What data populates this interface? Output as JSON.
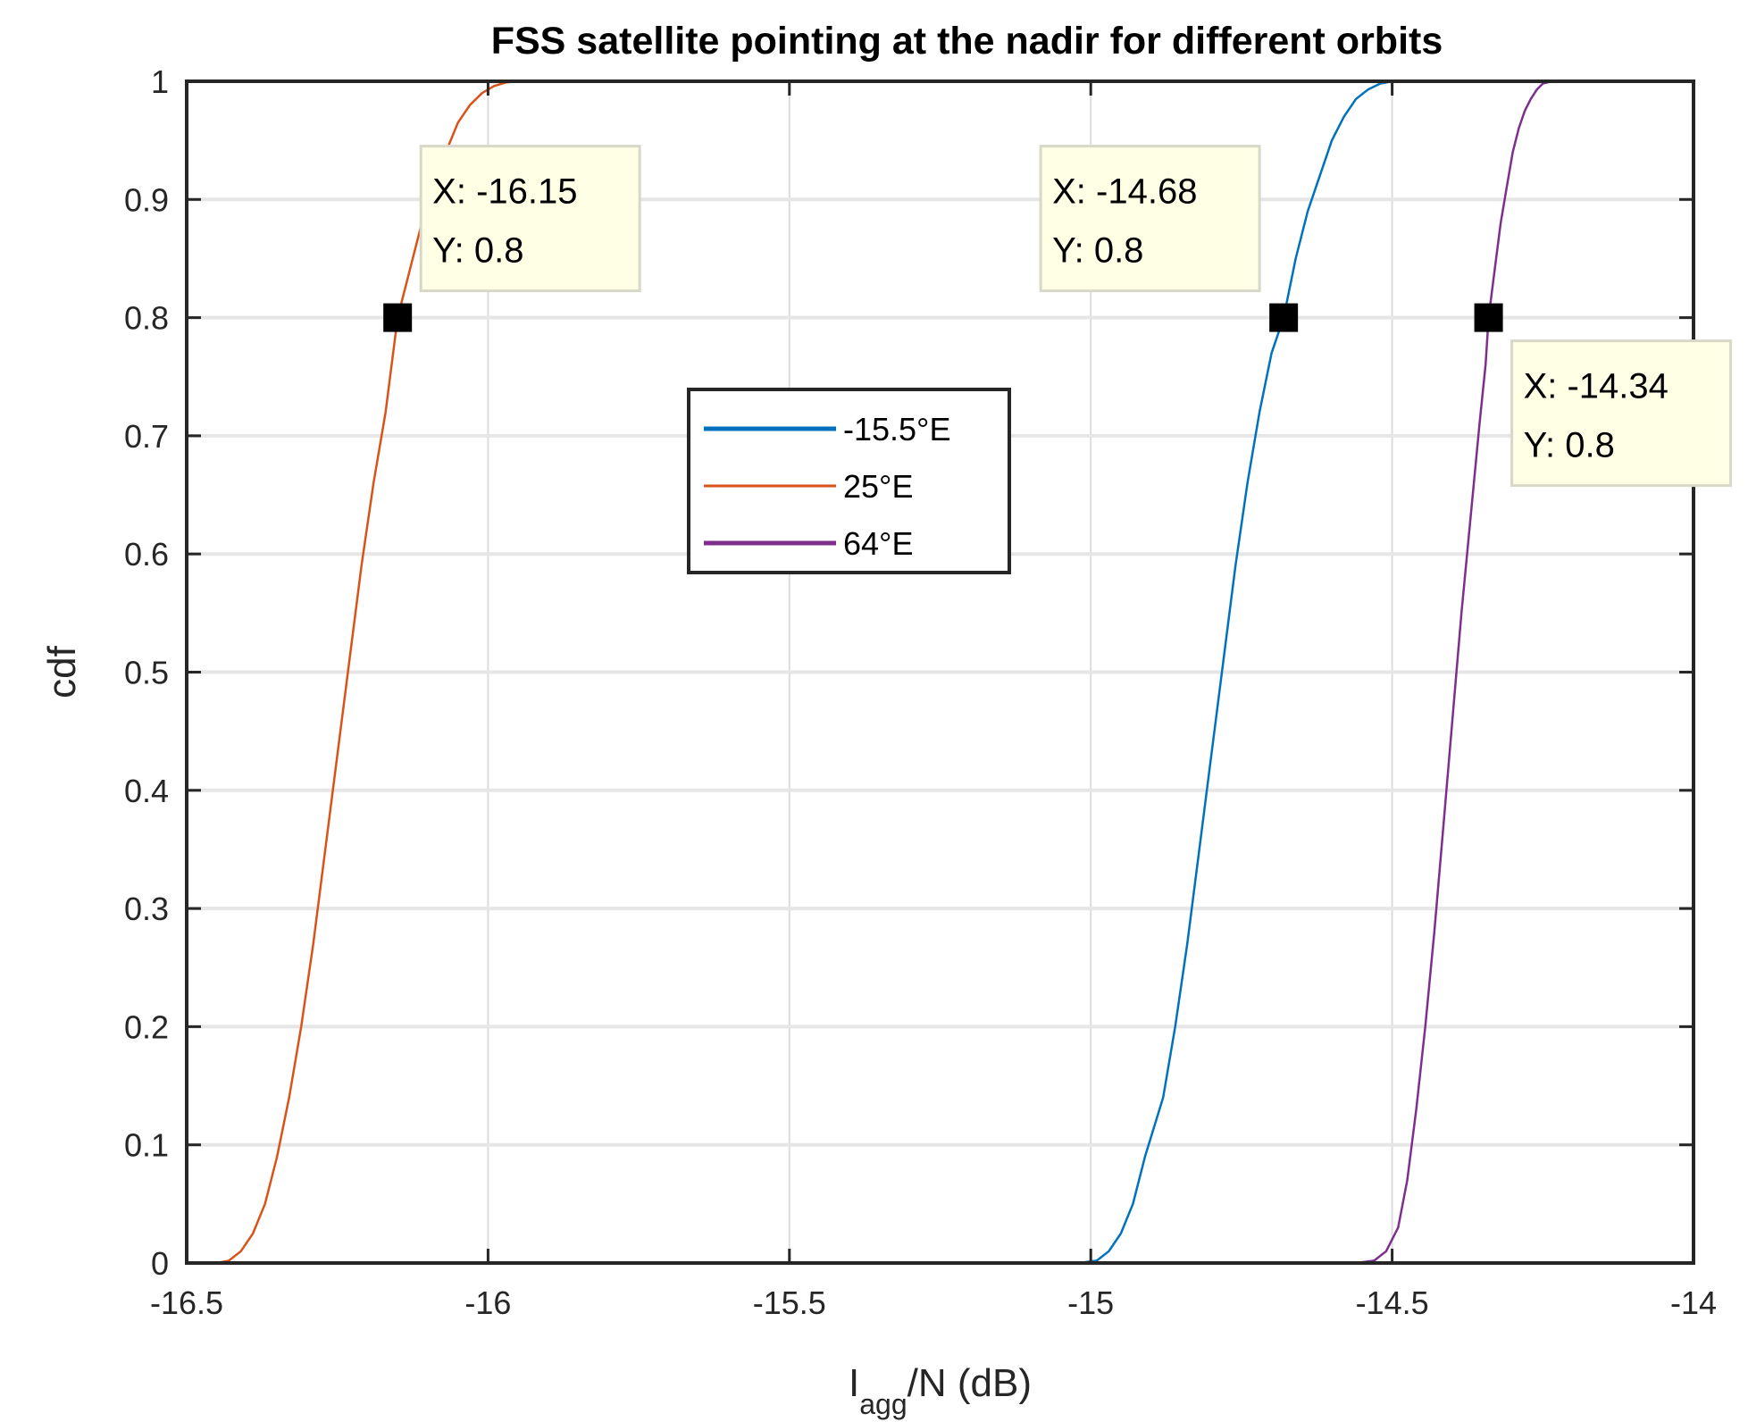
{
  "chart_data": {
    "type": "line",
    "title": "FSS satellite pointing at the nadir for different orbits",
    "xlabel_main": "I",
    "xlabel_sub": "agg",
    "xlabel_rest": "/N (dB)",
    "ylabel": "cdf",
    "xlim": [
      -16.5,
      -14
    ],
    "ylim": [
      0,
      1
    ],
    "xticks": [
      -16.5,
      -16,
      -15.5,
      -15,
      -14.5,
      -14
    ],
    "xtick_labels": [
      "-16.5",
      "-16",
      "-15.5",
      "-15",
      "-14.5",
      "-14"
    ],
    "yticks": [
      0,
      0.1,
      0.2,
      0.3,
      0.4,
      0.5,
      0.6,
      0.7,
      0.8,
      0.9,
      1
    ],
    "ytick_labels": [
      "0",
      "0.1",
      "0.2",
      "0.3",
      "0.4",
      "0.5",
      "0.6",
      "0.7",
      "0.8",
      "0.9",
      "1"
    ],
    "grid": true,
    "legend_position": "center",
    "series": [
      {
        "name": "-15.5°E",
        "color": "#0072BD",
        "x": [
          -15.02,
          -14.99,
          -14.97,
          -14.95,
          -14.93,
          -14.91,
          -14.88,
          -14.86,
          -14.84,
          -14.82,
          -14.8,
          -14.78,
          -14.76,
          -14.74,
          -14.72,
          -14.7,
          -14.68,
          -14.66,
          -14.64,
          -14.62,
          -14.6,
          -14.58,
          -14.56,
          -14.54,
          -14.52,
          -14.5,
          -14.48,
          -14.46
        ],
        "y": [
          0,
          0.002,
          0.01,
          0.025,
          0.05,
          0.09,
          0.14,
          0.2,
          0.27,
          0.35,
          0.43,
          0.51,
          0.59,
          0.66,
          0.72,
          0.77,
          0.8,
          0.85,
          0.89,
          0.92,
          0.95,
          0.97,
          0.985,
          0.993,
          0.998,
          1,
          1,
          1
        ]
      },
      {
        "name": "25°E",
        "color": "#D95319",
        "x": [
          -16.45,
          -16.43,
          -16.41,
          -16.39,
          -16.37,
          -16.35,
          -16.33,
          -16.31,
          -16.29,
          -16.27,
          -16.25,
          -16.23,
          -16.21,
          -16.19,
          -16.17,
          -16.15,
          -16.13,
          -16.11,
          -16.09,
          -16.07,
          -16.05,
          -16.03,
          -16.01,
          -15.99,
          -15.97,
          -15.95,
          -15.93,
          -15.9
        ],
        "y": [
          0,
          0.002,
          0.01,
          0.025,
          0.05,
          0.09,
          0.14,
          0.2,
          0.27,
          0.35,
          0.43,
          0.51,
          0.59,
          0.66,
          0.72,
          0.8,
          0.84,
          0.88,
          0.91,
          0.94,
          0.965,
          0.98,
          0.99,
          0.996,
          0.999,
          1,
          1,
          1
        ]
      },
      {
        "name": "64°E",
        "color": "#7E2F8E",
        "x": [
          -14.56,
          -14.53,
          -14.51,
          -14.49,
          -14.475,
          -14.46,
          -14.445,
          -14.43,
          -14.415,
          -14.4,
          -14.385,
          -14.37,
          -14.355,
          -14.345,
          -14.34,
          -14.33,
          -14.32,
          -14.31,
          -14.3,
          -14.29,
          -14.28,
          -14.27,
          -14.26,
          -14.25,
          -14.235,
          -14.22,
          -14.2
        ],
        "y": [
          0,
          0.002,
          0.01,
          0.03,
          0.07,
          0.13,
          0.2,
          0.28,
          0.37,
          0.46,
          0.55,
          0.63,
          0.71,
          0.76,
          0.8,
          0.84,
          0.88,
          0.91,
          0.94,
          0.96,
          0.975,
          0.985,
          0.993,
          0.998,
          1,
          1,
          1
        ]
      }
    ],
    "datatips": [
      {
        "series": "25°E",
        "x": -16.15,
        "y": 0.8,
        "x_text": "X: -16.15",
        "y_text": "Y: 0.8",
        "placement": "above-right"
      },
      {
        "series": "-15.5°E",
        "x": -14.68,
        "y": 0.8,
        "x_text": "X: -14.68",
        "y_text": "Y: 0.8",
        "placement": "above-left"
      },
      {
        "series": "64°E",
        "x": -14.34,
        "y": 0.8,
        "x_text": "X: -14.34",
        "y_text": "Y: 0.8",
        "placement": "below-right"
      }
    ]
  }
}
